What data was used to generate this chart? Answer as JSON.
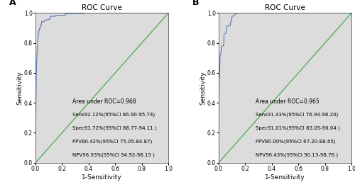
{
  "panel_A": {
    "label": "A",
    "title": "ROC Curve",
    "xlabel": "1-Sensitivity",
    "ylabel": "Sensitivity",
    "bg_color": "#dcdcdc",
    "roc_color": "#5a7ab0",
    "diag_color": "#4aaa4a",
    "text_lines": [
      "Area under ROC=0.968",
      "Sens92.12%(95%CI 86.90-95.74)",
      "Spec91.72%(95%CI 88.77-94.11 )",
      "PPV80.42%(95%CI 75.05-84.87)",
      "NPV96.93%(95%CI 94.92-98.15 )"
    ],
    "roc_fpr": [
      0.0,
      0.003,
      0.006,
      0.01,
      0.015,
      0.02,
      0.025,
      0.03,
      0.04,
      0.05,
      0.06,
      0.08,
      0.1,
      0.15,
      0.2,
      0.3,
      0.5,
      0.7,
      1.0
    ],
    "roc_tpr": [
      0.0,
      0.4,
      0.58,
      0.7,
      0.78,
      0.84,
      0.87,
      0.89,
      0.91,
      0.925,
      0.935,
      0.945,
      0.955,
      0.965,
      0.975,
      0.985,
      0.993,
      0.997,
      1.0
    ]
  },
  "panel_B": {
    "label": "B",
    "title": "ROC Curve",
    "xlabel": "1-Sensitivity",
    "ylabel": "Sensitivity",
    "bg_color": "#dcdcdc",
    "roc_color": "#5a7ab0",
    "diag_color": "#4aaa4a",
    "text_lines": [
      "Area under ROC=0.965",
      "Sens91.43%(95%CI 76.94-98.20)",
      "Spec91.01%(95%CI 83.05-96.04 )",
      "PPV80.00%(95%CI 67.20-88.65)",
      "NPV96.43%(95%CI 90.13-98.76 )"
    ],
    "roc_fpr": [
      0.0,
      0.0,
      0.01,
      0.01,
      0.02,
      0.02,
      0.04,
      0.04,
      0.06,
      0.06,
      0.09,
      0.09,
      0.1,
      0.1,
      0.15,
      0.5,
      1.0
    ],
    "roc_tpr": [
      0.0,
      0.55,
      0.55,
      0.72,
      0.72,
      0.78,
      0.78,
      0.86,
      0.86,
      0.91,
      0.91,
      0.945,
      0.945,
      0.975,
      1.0,
      1.0,
      1.0
    ]
  }
}
